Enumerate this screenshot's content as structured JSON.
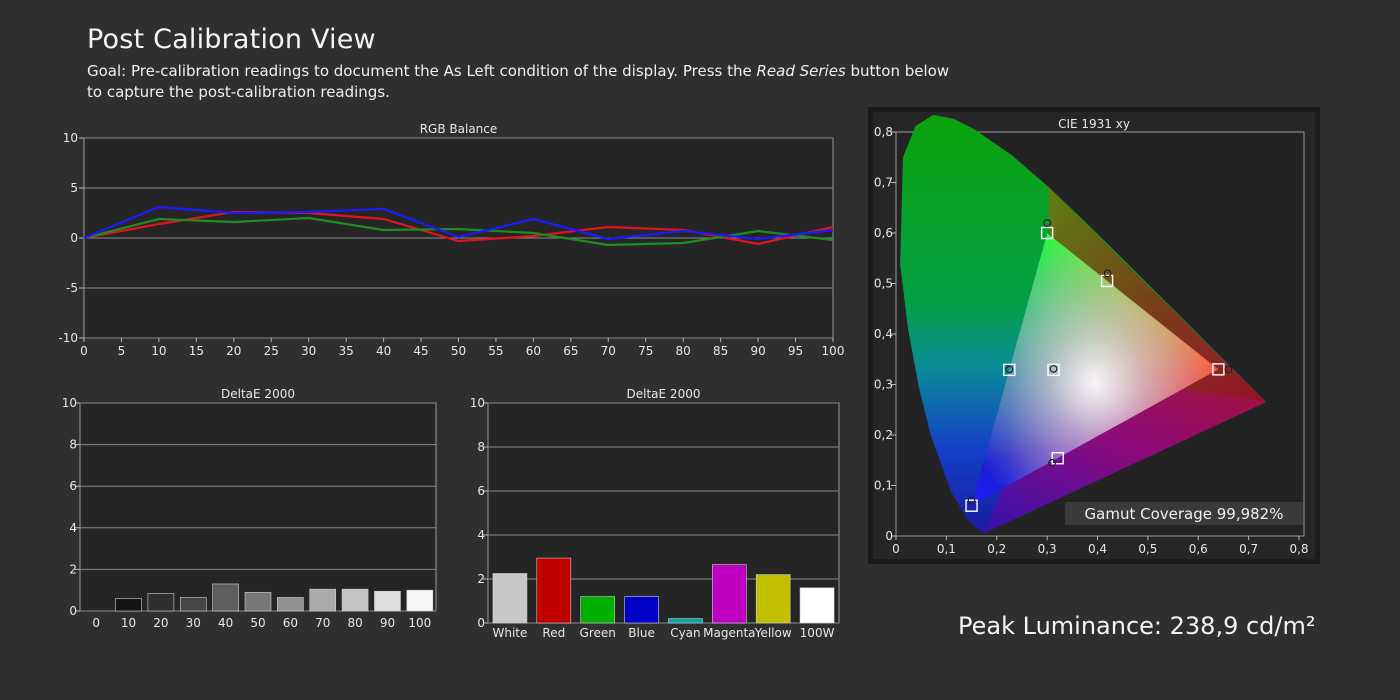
{
  "page": {
    "title": "Post Calibration View",
    "goal_prefix": "Goal: Pre-calibration readings to document the As Left condition of the display. Press the ",
    "goal_emph": "Read Series",
    "goal_suffix": " button below to capture the post-calibration readings.",
    "peak_luminance": "Peak Luminance: 238,9 cd/m²"
  },
  "colors": {
    "background": "#2f2f2f",
    "plot_bg": "#252525",
    "grid": "#8a8a8a",
    "red": "#e0141e",
    "green": "#1e8c1e",
    "blue": "#1a1aff"
  },
  "chart_data": [
    {
      "type": "line",
      "title": "RGB Balance",
      "x": [
        0,
        10,
        20,
        30,
        40,
        50,
        60,
        70,
        80,
        90,
        100
      ],
      "xticks": [
        "0",
        "5",
        "10",
        "15",
        "20",
        "25",
        "30",
        "35",
        "40",
        "45",
        "50",
        "55",
        "60",
        "65",
        "70",
        "75",
        "80",
        "85",
        "90",
        "95",
        "100"
      ],
      "yticks": [
        "10",
        "5",
        "0",
        "-5",
        "-10"
      ],
      "ylim": [
        -10,
        10
      ],
      "xlim": [
        0,
        100
      ],
      "grid": true,
      "series": [
        {
          "color": "#e0141e",
          "values": [
            0,
            1.4,
            2.6,
            2.5,
            1.9,
            -0.3,
            0.2,
            1.1,
            0.8,
            -0.6,
            1.1
          ]
        },
        {
          "color": "#1e8c1e",
          "values": [
            0,
            1.9,
            1.6,
            2.0,
            0.8,
            0.9,
            0.5,
            -0.7,
            -0.5,
            0.7,
            -0.2
          ]
        },
        {
          "color": "#1a1aff",
          "values": [
            0,
            3.1,
            2.5,
            2.6,
            2.9,
            0.1,
            1.9,
            -0.1,
            0.7,
            -0.1,
            0.8
          ]
        }
      ]
    },
    {
      "type": "bar",
      "title": "DeltaE 2000",
      "categories": [
        "0",
        "10",
        "20",
        "30",
        "40",
        "50",
        "60",
        "70",
        "80",
        "90",
        "100"
      ],
      "values": [
        0,
        0.6,
        0.85,
        0.65,
        1.3,
        0.9,
        0.65,
        1.05,
        1.05,
        0.95,
        1.0
      ],
      "bar_colors": [
        "#000000",
        "#141414",
        "#2f2f2f",
        "#464646",
        "#5e5e5e",
        "#777777",
        "#909090",
        "#aaaaaa",
        "#c3c3c3",
        "#dddddd",
        "#f6f6f6"
      ],
      "yticks": [
        "10",
        "8",
        "6",
        "4",
        "2",
        "0"
      ],
      "ylim": [
        0,
        10
      ],
      "grid": true
    },
    {
      "type": "bar",
      "title": "DeltaE 2000",
      "categories": [
        "White",
        "Red",
        "Green",
        "Blue",
        "Cyan",
        "Magenta",
        "Yellow",
        "100W"
      ],
      "values": [
        2.25,
        2.95,
        1.2,
        1.2,
        0.2,
        2.65,
        2.2,
        1.6
      ],
      "bar_colors": [
        "#c8c8c8",
        "#c00000",
        "#00b000",
        "#0000c8",
        "#00a8a8",
        "#c000c0",
        "#c0c000",
        "#ffffff"
      ],
      "yticks": [
        "10",
        "8",
        "6",
        "4",
        "2",
        "0"
      ],
      "ylim": [
        0,
        10
      ],
      "grid": true
    },
    {
      "type": "scatter",
      "title": "CIE 1931 xy",
      "xticks": [
        "0",
        "0,1",
        "0,2",
        "0,3",
        "0,4",
        "0,5",
        "0,6",
        "0,7",
        "0,8"
      ],
      "yticks": [
        "0,8",
        "0,7",
        "0,6",
        "0,5",
        "0,4",
        "0,3",
        "0,2",
        "0,1",
        "0"
      ],
      "xlim": [
        0,
        0.8
      ],
      "ylim": [
        0,
        0.8
      ],
      "gamut_coverage": "Gamut Coverage 99,982%",
      "targets": [
        {
          "x": 0.64,
          "y": 0.33
        },
        {
          "x": 0.3,
          "y": 0.6
        },
        {
          "x": 0.15,
          "y": 0.06
        },
        {
          "x": 0.225,
          "y": 0.329
        },
        {
          "x": 0.321,
          "y": 0.154
        },
        {
          "x": 0.419,
          "y": 0.505
        },
        {
          "x": 0.3127,
          "y": 0.329
        }
      ],
      "measured": [
        {
          "x": 0.66,
          "y": 0.33
        },
        {
          "x": 0.3,
          "y": 0.62
        },
        {
          "x": 0.15,
          "y": 0.07
        },
        {
          "x": 0.225,
          "y": 0.33
        },
        {
          "x": 0.31,
          "y": 0.145
        },
        {
          "x": 0.42,
          "y": 0.52
        },
        {
          "x": 0.3127,
          "y": 0.331
        }
      ]
    }
  ]
}
